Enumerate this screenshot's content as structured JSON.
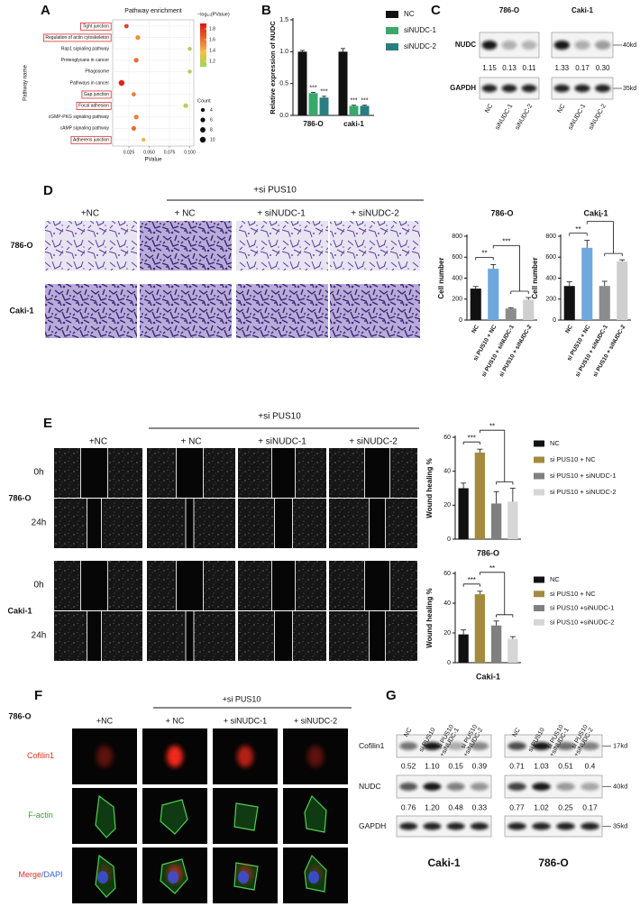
{
  "panel_labels": [
    "A",
    "B",
    "C",
    "D",
    "E",
    "F",
    "G"
  ],
  "chart_data": [
    {
      "type": "scatter",
      "title": "Pathway enrichment",
      "xlabel": "PValue",
      "ylabel": "Pathway name",
      "categories": [
        "Tight junction",
        "Regulation of actin cytoskeleton",
        "Rap1 signaling pathway",
        "Proteoglycans in cancer",
        "Phagosome",
        "Pathways in cancer",
        "Gap junction",
        "Focal adhesion",
        "cGMP-PKG signaling pathway",
        "cAMP signaling pathway",
        "Adherens junction"
      ],
      "x": [
        0.022,
        0.036,
        0.1,
        0.034,
        0.1,
        0.016,
        0.031,
        0.095,
        0.034,
        0.031,
        0.043
      ],
      "color_values": [
        1.75,
        1.5,
        1.15,
        1.6,
        1.15,
        1.85,
        1.55,
        1.2,
        1.55,
        1.6,
        1.4
      ],
      "sizes": [
        5,
        6,
        4,
        6,
        4,
        10,
        5,
        6,
        6,
        6,
        4
      ],
      "highlighted": [
        true,
        true,
        false,
        false,
        false,
        false,
        true,
        true,
        false,
        false,
        true
      ],
      "highlight_color": "#d9302a",
      "xlim": [
        0.005,
        0.105
      ],
      "xticks": [
        0.025,
        {
          "value": 0.05,
          "label": "0.050"
        },
        0.075,
        {
          "value": 0.1,
          "label": "0.100"
        }
      ],
      "grid": true,
      "colorbar": {
        "label": "−log₁₀(PValue)",
        "lim": [
          1.1,
          1.9
        ],
        "ticks": [
          1.2,
          1.4,
          1.6,
          1.8
        ],
        "colors": [
          "#9ed35a",
          "#f0c14b",
          "#e8612c",
          "#d7191c"
        ]
      },
      "size_legend": {
        "label": "Count",
        "values": [
          4,
          6,
          8,
          10
        ]
      }
    },
    {
      "type": "bar",
      "ylabel": "Relative expression of NUDC",
      "categories": [
        "786-O",
        "caki-1"
      ],
      "series": [
        {
          "name": "NC",
          "color": "#111111",
          "values": [
            1.0,
            1.0
          ],
          "errors": [
            0.02,
            0.05
          ]
        },
        {
          "name": "siNUDC-1",
          "color": "#3aa86b",
          "values": [
            0.35,
            0.15
          ],
          "errors": [
            0.01,
            0.01
          ],
          "significance": [
            "***",
            "***"
          ]
        },
        {
          "name": "siNUDC-2",
          "color": "#2b7e80",
          "values": [
            0.28,
            0.15
          ],
          "errors": [
            0.02,
            0.01
          ],
          "significance": [
            "***",
            "***"
          ]
        }
      ],
      "ylim": [
        0,
        1.5
      ],
      "yticks": [
        {
          "value": 0,
          "label": "0.0"
        },
        0.5,
        {
          "value": 1,
          "label": "1.0"
        },
        1.5
      ],
      "legend": "right"
    },
    {
      "type": "bar",
      "title": "786-O",
      "ylabel": "Cell number",
      "categories": [
        "NC",
        "si PUS10 + NC",
        "si PUS10 + siNUDC-1",
        "si PUS10 + siNUDC-2"
      ],
      "values": [
        300,
        490,
        110,
        195
      ],
      "errors": [
        20,
        40,
        8,
        20
      ],
      "colors": [
        "#111111",
        "#6fa8dc",
        "#8c8c8c",
        "#cfcfcf"
      ],
      "ylim": [
        0,
        800
      ],
      "yticks": [
        0,
        200,
        400,
        600,
        800
      ],
      "significance": [
        "**",
        "***"
      ]
    },
    {
      "type": "bar",
      "title": "Caki-1",
      "ylabel": "Cell number",
      "categories": [
        "NC",
        "si PUS10 + NC",
        "si PUS10 + siNUDC-1",
        "si PUS10 + siNUDC-2"
      ],
      "values": [
        325,
        690,
        325,
        560
      ],
      "errors": [
        40,
        70,
        45,
        15
      ],
      "colors": [
        "#111111",
        "#6fa8dc",
        "#8c8c8c",
        "#cfcfcf"
      ],
      "ylim": [
        0,
        800
      ],
      "yticks": [
        0,
        200,
        400,
        600,
        800
      ],
      "significance": [
        "**",
        "*"
      ]
    },
    {
      "type": "bar",
      "title": "786-O",
      "ylabel": "Wound healing %",
      "categories": [
        "NC",
        "si PUS10 + NC",
        "si PUS10 + siNUDC-1",
        "si PUS10 + siNUDC-2"
      ],
      "values": [
        30,
        51,
        21,
        22
      ],
      "errors": [
        3,
        2,
        7,
        8
      ],
      "colors": [
        "#111111",
        "#a38a3f",
        "#808080",
        "#d6d6d6"
      ],
      "ylim": [
        0,
        60
      ],
      "yticks": [
        0,
        20,
        40,
        60
      ],
      "significance": [
        "***",
        "**"
      ],
      "legend": "right"
    },
    {
      "type": "bar",
      "title": "Caki-1",
      "ylabel": "Wound healing %",
      "categories": [
        "NC",
        "si PUS10 + NC",
        "si PUS10 +siNUDC-1",
        "si PUS10 +siNUDC-2"
      ],
      "values": [
        19,
        46,
        25,
        16
      ],
      "errors": [
        3,
        2,
        3,
        1.5
      ],
      "colors": [
        "#111111",
        "#a38a3f",
        "#808080",
        "#d6d6d6"
      ],
      "ylim": [
        0,
        60
      ],
      "yticks": [
        0,
        20,
        40,
        60
      ],
      "significance": [
        "***",
        "**"
      ],
      "legend": "right"
    }
  ],
  "panel_c": {
    "lanes": [
      "NC",
      "siNUDC-1",
      "siNUDC-2"
    ],
    "rows": [
      "NUDC",
      "GAPDH"
    ],
    "sizes": [
      "40kd",
      "35kd"
    ],
    "groups": [
      {
        "title": "786-O",
        "values": [
          "1.15",
          "0.13",
          "0.11"
        ]
      },
      {
        "title": "Caki-1",
        "values": [
          "1.33",
          "0.17",
          "0.30"
        ]
      }
    ]
  },
  "panel_d": {
    "group": "+si PUS10",
    "columns": [
      "+NC",
      "+ NC",
      "+ siNUDC-1",
      "+ siNUDC-2"
    ],
    "rows": [
      "786-O",
      "Caki-1"
    ]
  },
  "panel_e": {
    "group": "+si PUS10",
    "columns": [
      "+NC",
      "+ NC",
      "+ siNUDC-1",
      "+ siNUDC-2"
    ],
    "cell_lines": [
      {
        "name": "786-O",
        "times": [
          "0h",
          "24h"
        ]
      },
      {
        "name": "Caki-1",
        "times": [
          "0h",
          "24h"
        ]
      }
    ]
  },
  "panel_f": {
    "cell_line": "786-O",
    "group": "+si PUS10",
    "columns": [
      "+NC",
      "+ NC",
      "+ siNUDC-1",
      "+ siNUDC-2"
    ],
    "rows": [
      {
        "parts": [
          {
            "text": "Cofilin1",
            "color": "#e03020"
          }
        ]
      },
      {
        "parts": [
          {
            "text": "F-actin",
            "color": "#3aa040"
          }
        ]
      },
      {
        "parts": [
          {
            "text": "Merge",
            "color": "#e03020"
          },
          {
            "text": "/DAPI",
            "color": "#3060c0"
          }
        ]
      }
    ]
  },
  "panel_g": {
    "lanes": [
      [
        "NC"
      ],
      [
        "si PUS10"
      ],
      [
        "si PUS10",
        "+siNUDC-1"
      ],
      [
        "si PUS10",
        "+siNUDC-2"
      ]
    ],
    "rows": [
      "Cofilin1",
      "NUDC",
      "GAPDH"
    ],
    "sizes": [
      "17kd",
      "40kd",
      "35kd"
    ],
    "groups": [
      {
        "title": "Caki-1",
        "values": [
          [
            "0.52",
            "1.10",
            "0.15",
            "0.39"
          ],
          [
            "0.76",
            "1.20",
            "0.48",
            "0.33"
          ]
        ]
      },
      {
        "title": "786-O",
        "values": [
          [
            "0.71",
            "1.03",
            "0.51",
            "0.4"
          ],
          [
            "0.77",
            "1.02",
            "0.25",
            "0.17"
          ]
        ]
      }
    ]
  }
}
